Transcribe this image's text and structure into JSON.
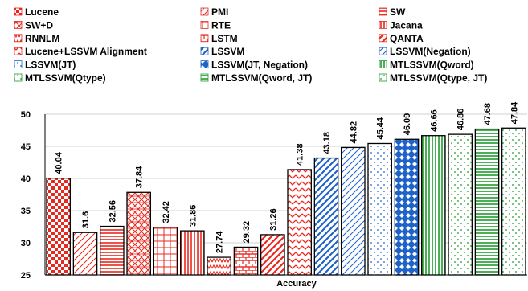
{
  "chart_data": {
    "type": "bar",
    "title": "",
    "xlabel": "Accuracy",
    "ylabel": "",
    "ylim": [
      25,
      50
    ],
    "yticks": [
      25,
      30,
      35,
      40,
      45,
      50
    ],
    "legend_position": "top",
    "series": [
      {
        "name": "Lucene",
        "value": 40.04,
        "label": "40.04",
        "label_color": "#777777",
        "color": "#e8281e",
        "pattern": "checker"
      },
      {
        "name": "PMI",
        "value": 31.6,
        "label": "31.6",
        "label_color": "#000000",
        "color": "#e8281e",
        "pattern": "diag-light"
      },
      {
        "name": "SW",
        "value": 32.56,
        "label": "32.56",
        "label_color": "#000000",
        "color": "#e8281e",
        "pattern": "hlines"
      },
      {
        "name": "SW+D",
        "value": 37.84,
        "label": "37.84",
        "label_color": "#000000",
        "color": "#e8281e",
        "pattern": "lattice"
      },
      {
        "name": "RTE",
        "value": 32.42,
        "label": "32.42",
        "label_color": "#000000",
        "color": "#e8281e",
        "pattern": "grid"
      },
      {
        "name": "Jacana",
        "value": 31.86,
        "label": "31.86",
        "label_color": "#000000",
        "color": "#e8281e",
        "pattern": "vlines"
      },
      {
        "name": "RNNLM",
        "value": 27.74,
        "label": "27.74",
        "label_color": "#000000",
        "color": "#e8281e",
        "pattern": "zigzag"
      },
      {
        "name": "LSTM",
        "value": 29.32,
        "label": "29.32",
        "label_color": "#000000",
        "color": "#e8281e",
        "pattern": "brick"
      },
      {
        "name": "QANTA",
        "value": 31.26,
        "label": "31.26",
        "label_color": "#777777",
        "color": "#e8281e",
        "pattern": "diag-wide"
      },
      {
        "name": "Lucene+LSSVM Alignment",
        "value": 41.38,
        "label": "41.38",
        "label_color": "#000000",
        "color": "#e8281e",
        "pattern": "zigzag-h"
      },
      {
        "name": "LSSVM",
        "value": 43.18,
        "label": "43.18",
        "label_color": "#000000",
        "color": "#1f63c8",
        "pattern": "diag-wide"
      },
      {
        "name": "LSSVM(Negation)",
        "value": 44.82,
        "label": "44.82",
        "label_color": "#000000",
        "color": "#1f63c8",
        "pattern": "diag-light"
      },
      {
        "name": "LSSVM(JT)",
        "value": 45.44,
        "label": "45.44",
        "label_color": "#777777",
        "color": "#1f63c8",
        "pattern": "dots"
      },
      {
        "name": "LSSVM(JT, Negation)",
        "value": 46.09,
        "label": "46.09",
        "label_color": "#000000",
        "color": "#1f63c8",
        "pattern": "diamonds"
      },
      {
        "name": "MTLSSVM(Qword)",
        "value": 46.66,
        "label": "46.66",
        "label_color": "#000000",
        "color": "#1f9a2c",
        "pattern": "vlines"
      },
      {
        "name": "MTLSSVM(Qtype)",
        "value": 46.86,
        "label": "46.86",
        "label_color": "#000000",
        "color": "#1f9a2c",
        "pattern": "dots"
      },
      {
        "name": "MTLSSVM(Qword, JT)",
        "value": 47.68,
        "label": "47.68",
        "label_color": "#000000",
        "color": "#1f9a2c",
        "pattern": "hlines"
      },
      {
        "name": "MTLSSVM(Qtype, JT)",
        "value": 47.84,
        "label": "47.84",
        "label_color": "#000000",
        "color": "#1f9a2c",
        "pattern": "dots"
      }
    ]
  }
}
